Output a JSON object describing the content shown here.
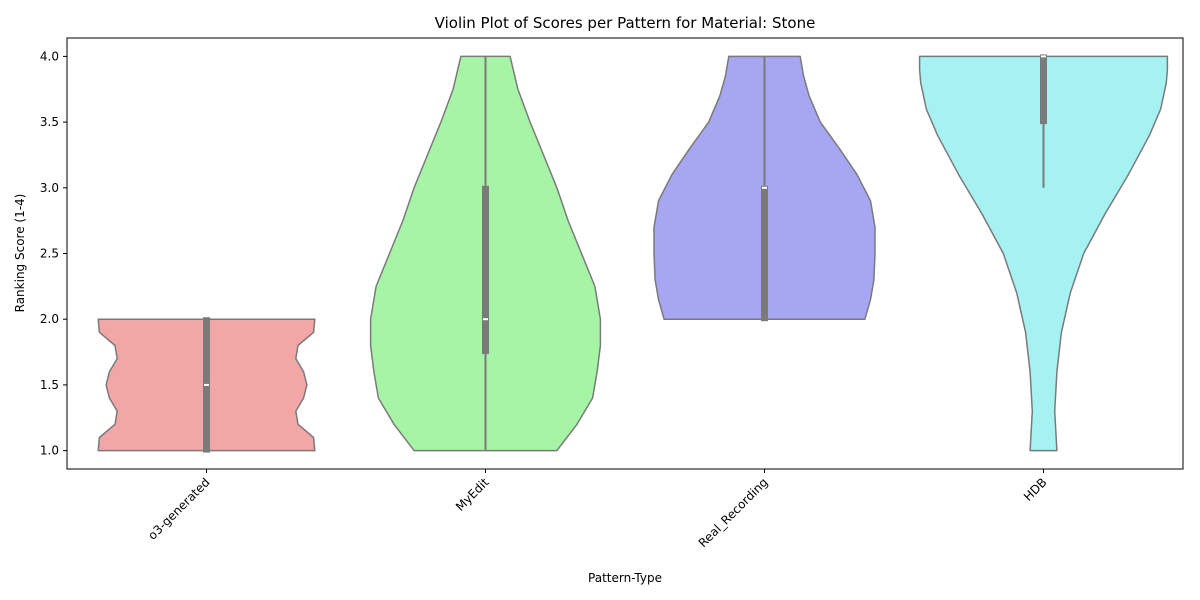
{
  "chart_data": {
    "type": "violin",
    "title": "Violin Plot of Scores per Pattern for Material: Stone",
    "xlabel": "Pattern-Type",
    "ylabel": "Ranking Score (1-4)",
    "ylim": [
      0.86,
      4.14
    ],
    "yticks": [
      1.0,
      1.5,
      2.0,
      2.5,
      3.0,
      3.5,
      4.0
    ],
    "ytick_labels": [
      "1.0",
      "1.5",
      "2.0",
      "2.5",
      "3.0",
      "3.5",
      "4.0"
    ],
    "categories": [
      "o3-generated",
      "MyEdit",
      "Real_Recording",
      "HDB"
    ],
    "grid": false,
    "legend": "none",
    "series": [
      {
        "category": "o3-generated",
        "color": "#f2a6a6",
        "min": 1.0,
        "q1": 1.0,
        "median": 1.5,
        "q3": 2.0,
        "max": 2.0,
        "density": [
          [
            1.0,
            0.97
          ],
          [
            1.1,
            0.96
          ],
          [
            1.2,
            0.82
          ],
          [
            1.3,
            0.8
          ],
          [
            1.4,
            0.87
          ],
          [
            1.5,
            0.9
          ],
          [
            1.6,
            0.87
          ],
          [
            1.7,
            0.8
          ],
          [
            1.8,
            0.82
          ],
          [
            1.9,
            0.96
          ],
          [
            2.0,
            0.97
          ]
        ]
      },
      {
        "category": "MyEdit",
        "color": "#a6f5a6",
        "min": 1.0,
        "q1": 1.75,
        "median": 2.0,
        "q3": 3.0,
        "max": 4.0,
        "density": [
          [
            1.0,
            0.64
          ],
          [
            1.2,
            0.82
          ],
          [
            1.4,
            0.96
          ],
          [
            1.6,
            1.0
          ],
          [
            1.8,
            1.03
          ],
          [
            2.0,
            1.03
          ],
          [
            2.25,
            0.98
          ],
          [
            2.5,
            0.86
          ],
          [
            2.75,
            0.74
          ],
          [
            3.0,
            0.64
          ],
          [
            3.25,
            0.52
          ],
          [
            3.5,
            0.4
          ],
          [
            3.75,
            0.29
          ],
          [
            4.0,
            0.22
          ]
        ]
      },
      {
        "category": "Real_Recording",
        "color": "#a6a6f2",
        "min": 2.0,
        "q1": 2.0,
        "median": 3.0,
        "q3": 3.0,
        "max": 4.0,
        "density": [
          [
            2.0,
            0.9
          ],
          [
            2.15,
            0.95
          ],
          [
            2.3,
            0.98
          ],
          [
            2.5,
            0.99
          ],
          [
            2.7,
            0.99
          ],
          [
            2.9,
            0.95
          ],
          [
            3.1,
            0.83
          ],
          [
            3.3,
            0.67
          ],
          [
            3.5,
            0.5
          ],
          [
            3.7,
            0.4
          ],
          [
            3.85,
            0.35
          ],
          [
            4.0,
            0.32
          ]
        ]
      },
      {
        "category": "HDB",
        "color": "#a6f2f2",
        "min": 3.0,
        "q1": 3.5,
        "median": 4.0,
        "q3": 4.0,
        "max": 4.0,
        "density": [
          [
            1.0,
            0.12
          ],
          [
            1.3,
            0.1
          ],
          [
            1.6,
            0.12
          ],
          [
            1.9,
            0.16
          ],
          [
            2.2,
            0.24
          ],
          [
            2.5,
            0.36
          ],
          [
            2.8,
            0.55
          ],
          [
            3.1,
            0.76
          ],
          [
            3.4,
            0.95
          ],
          [
            3.6,
            1.05
          ],
          [
            3.8,
            1.1
          ],
          [
            3.9,
            1.11
          ],
          [
            4.0,
            1.11
          ]
        ]
      }
    ]
  }
}
